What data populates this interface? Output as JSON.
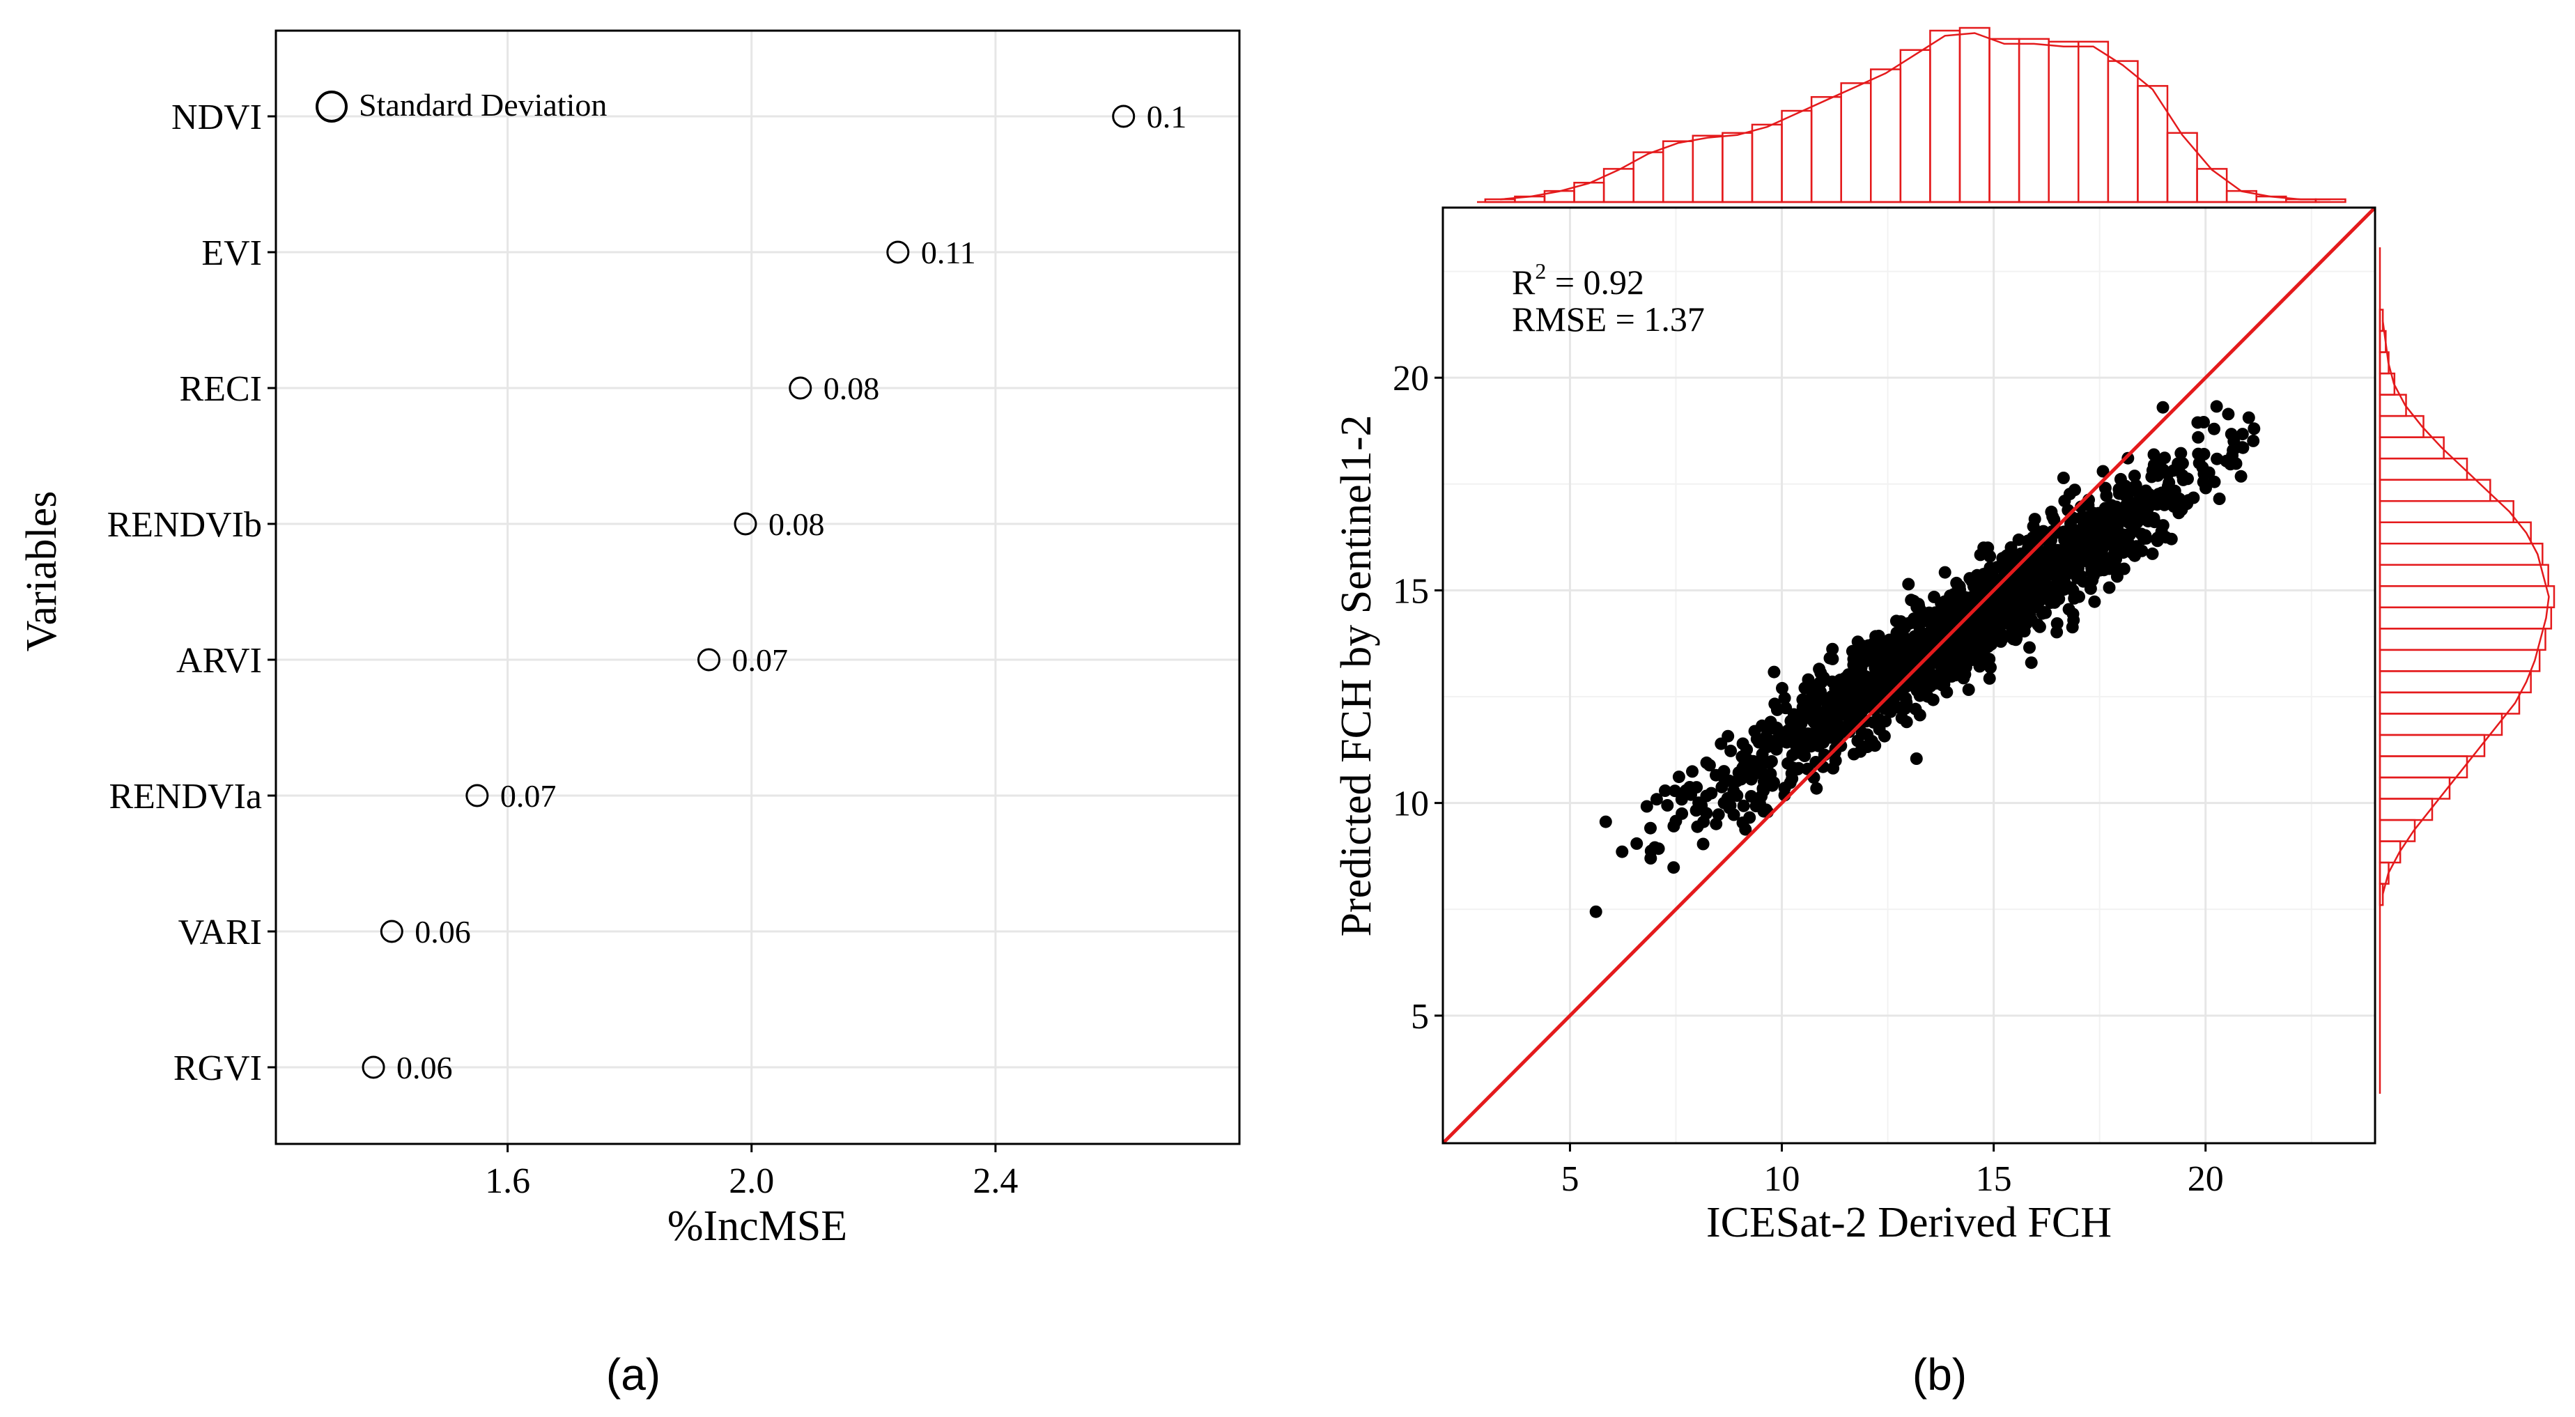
{
  "chart_data": [
    {
      "panel": "a",
      "type": "scatter",
      "subtype": "dot-plot",
      "caption": "(a)",
      "xlabel": "%IncMSE",
      "ylabel": "Variables",
      "xlim": [
        1.22,
        2.8
      ],
      "xticks": [
        1.6,
        2.0,
        2.4
      ],
      "xtick_labels": [
        "1.6",
        "2.0",
        "2.4"
      ],
      "legend": {
        "label": "Standard Deviation",
        "placement": "top-left"
      },
      "categories": [
        "NDVI",
        "EVI",
        "RECI",
        "RENDVIb",
        "ARVI",
        "RENDVIa",
        "VARI",
        "RGVI"
      ],
      "values": [
        2.61,
        2.24,
        2.08,
        1.99,
        1.93,
        1.55,
        1.41,
        1.38
      ],
      "sd_labels": [
        "0.1",
        "0.11",
        "0.08",
        "0.08",
        "0.07",
        "0.07",
        "0.06",
        "0.06"
      ]
    },
    {
      "panel": "b",
      "type": "scatter",
      "caption": "(b)",
      "xlabel": "ICESat-2 Derived FCH",
      "ylabel": "Predicted FCH by Sentinel1-2",
      "xlim": [
        2,
        24
      ],
      "ylim": [
        2,
        24
      ],
      "xticks": [
        5,
        10,
        15,
        20
      ],
      "yticks": [
        5,
        10,
        15,
        20
      ],
      "xtick_labels": [
        "5",
        "10",
        "15",
        "20"
      ],
      "ytick_labels": [
        "5",
        "10",
        "15",
        "20"
      ],
      "annotation": {
        "r2_prefix": "R",
        "r2_exp": "2",
        "r2_value": " = 0.92",
        "rmse": "RMSE = 1.37"
      },
      "reference_line": {
        "slope": 1,
        "intercept": 0,
        "color": "#e41a1c"
      },
      "scatter_summary": {
        "x_range": [
          5.5,
          21.3
        ],
        "fit_slope": 0.65,
        "fit_intercept": 4.9,
        "approx_n": 1600
      },
      "marginal_x_hist": {
        "bin_start": 3,
        "bin_width": 0.7,
        "counts": [
          1,
          2,
          4,
          7,
          12,
          18,
          22,
          24,
          25,
          28,
          33,
          38,
          43,
          48,
          55,
          62,
          63,
          59,
          59,
          58,
          58,
          51,
          42,
          25,
          12,
          4,
          2,
          1,
          1
        ]
      },
      "marginal_y_hist": {
        "bin_start": 7.6,
        "bin_width": 0.5,
        "counts": [
          1,
          3,
          7,
          12,
          18,
          24,
          30,
          36,
          42,
          48,
          52,
          55,
          57,
          59,
          60,
          58,
          56,
          52,
          46,
          38,
          30,
          22,
          15,
          9,
          5,
          3,
          2,
          1
        ]
      },
      "marginal_color": "#e41a1c"
    }
  ]
}
